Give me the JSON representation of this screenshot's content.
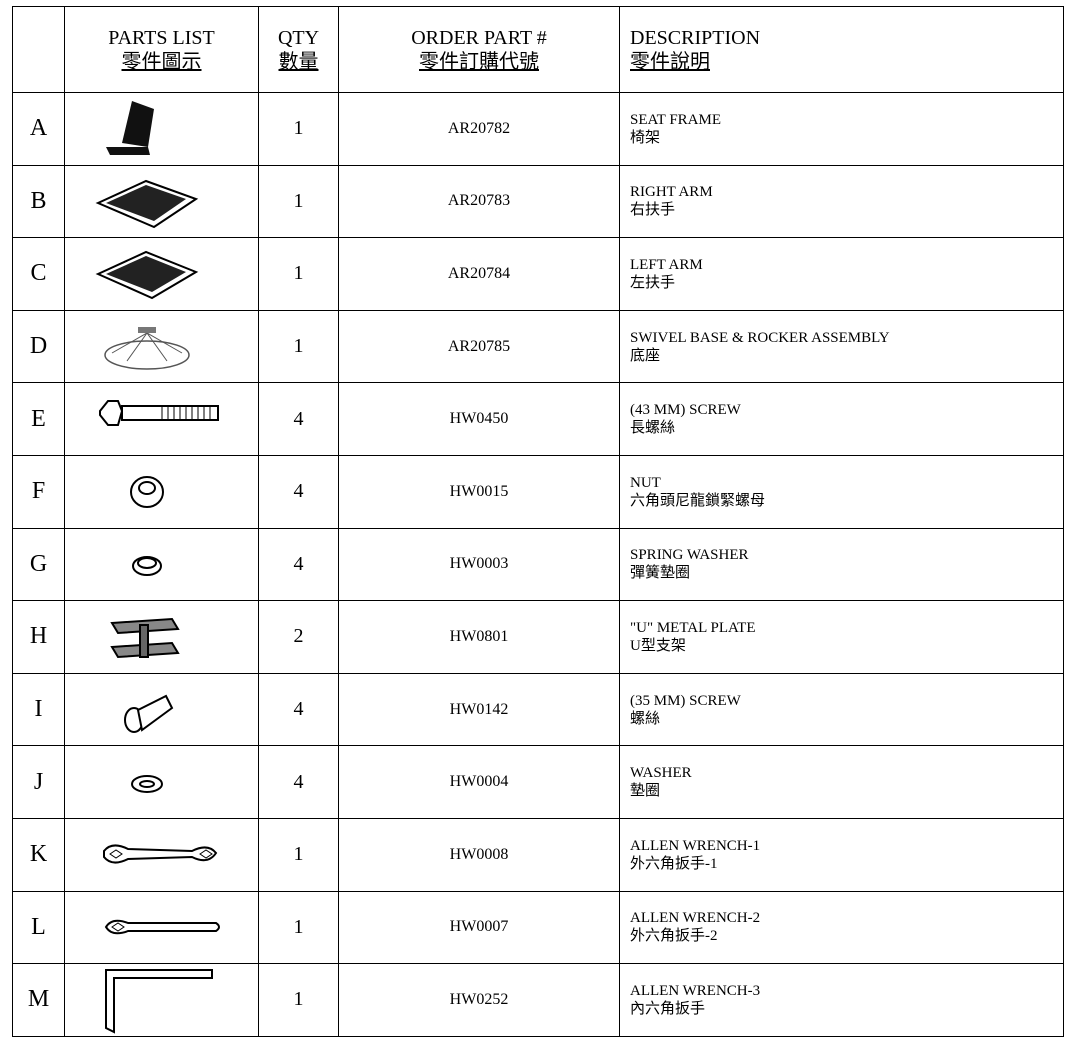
{
  "header": {
    "parts_list": "PARTS LIST",
    "parts_list_zh": "零件圖示",
    "qty": "QTY",
    "qty_zh": "數量",
    "order": "ORDER PART #",
    "order_zh": "零件訂購代號",
    "description": "DESCRIPTION",
    "description_zh": "零件說明"
  },
  "table": {
    "rows": [
      [
        "A",
        1,
        "AR20782",
        "SEAT FRAME",
        "椅架"
      ],
      [
        "B",
        1,
        "AR20783",
        "RIGHT ARM",
        "右扶手"
      ],
      [
        "C",
        1,
        "AR20784",
        "LEFT ARM",
        "左扶手"
      ],
      [
        "D",
        1,
        "AR20785",
        "SWIVEL BASE & ROCKER ASSEMBLY",
        "底座"
      ],
      [
        "E",
        4,
        "HW0450",
        "(43 MM) SCREW",
        "長螺絲"
      ],
      [
        "F",
        4,
        "HW0015",
        "NUT",
        "六角頭尼龍鎖緊螺母"
      ],
      [
        "G",
        4,
        "HW0003",
        "SPRING WASHER",
        "彈簧墊圈"
      ],
      [
        "H",
        2,
        "HW0801",
        "\"U\" METAL PLATE",
        "U型支架"
      ],
      [
        "I",
        4,
        "HW0142",
        "(35 MM) SCREW",
        "螺絲"
      ],
      [
        "J",
        4,
        "HW0004",
        "WASHER",
        "墊圈"
      ],
      [
        "K",
        1,
        "HW0008",
        "ALLEN WRENCH-1",
        "外六角扳手-1"
      ],
      [
        "L",
        1,
        "HW0007",
        "ALLEN WRENCH-2",
        "外六角扳手-2"
      ],
      [
        "M",
        1,
        "HW0252",
        "ALLEN WRENCH-3",
        "內六角扳手"
      ]
    ]
  }
}
